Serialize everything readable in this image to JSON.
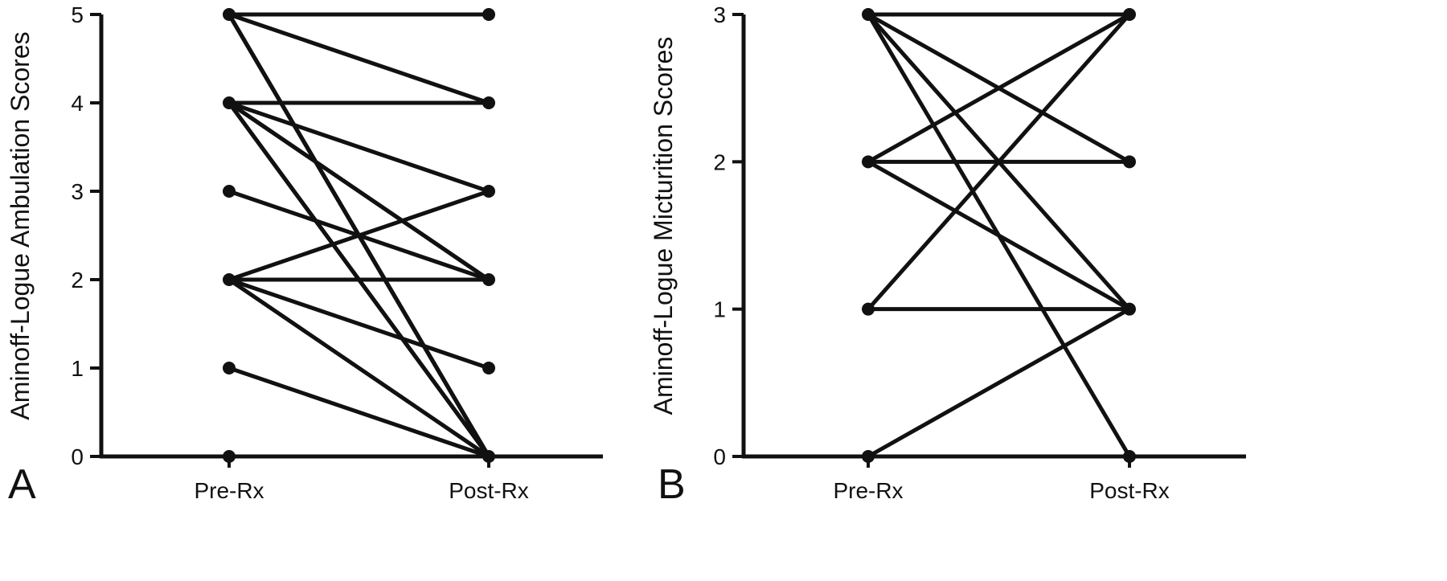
{
  "figure": {
    "colors": {
      "line": "#111111",
      "background": "#ffffff"
    }
  },
  "chart_data": [
    {
      "type": "line",
      "panel_label": "A",
      "ylabel": "Aminoff-Logue Ambulation Scores",
      "xlabel": "",
      "categories": [
        "Pre-Rx",
        "Post-Rx"
      ],
      "ylim": [
        0,
        5
      ],
      "yticks": [
        0,
        1,
        2,
        3,
        4,
        5
      ],
      "grid": false,
      "pairs": [
        [
          5,
          5
        ],
        [
          5,
          4
        ],
        [
          5,
          0
        ],
        [
          5,
          0
        ],
        [
          5,
          0
        ],
        [
          5,
          0
        ],
        [
          4,
          4
        ],
        [
          4,
          3
        ],
        [
          4,
          2
        ],
        [
          4,
          2
        ],
        [
          4,
          0
        ],
        [
          4,
          0
        ],
        [
          3,
          2
        ],
        [
          2,
          3
        ],
        [
          2,
          2
        ],
        [
          2,
          1
        ],
        [
          2,
          0
        ],
        [
          1,
          0
        ]
      ],
      "unpaired_points": [
        {
          "category": "Pre-Rx",
          "value": 0
        }
      ]
    },
    {
      "type": "line",
      "panel_label": "B",
      "ylabel": "Aminoff-Logue Micturition Scores",
      "xlabel": "",
      "categories": [
        "Pre-Rx",
        "Post-Rx"
      ],
      "ylim": [
        0,
        3
      ],
      "yticks": [
        0,
        1,
        2,
        3
      ],
      "grid": false,
      "pairs": [
        [
          3,
          3
        ],
        [
          3,
          2
        ],
        [
          3,
          1
        ],
        [
          3,
          0
        ],
        [
          2,
          3
        ],
        [
          2,
          2
        ],
        [
          2,
          1
        ],
        [
          1,
          3
        ],
        [
          1,
          1
        ],
        [
          0,
          1
        ]
      ],
      "unpaired_points": []
    }
  ]
}
